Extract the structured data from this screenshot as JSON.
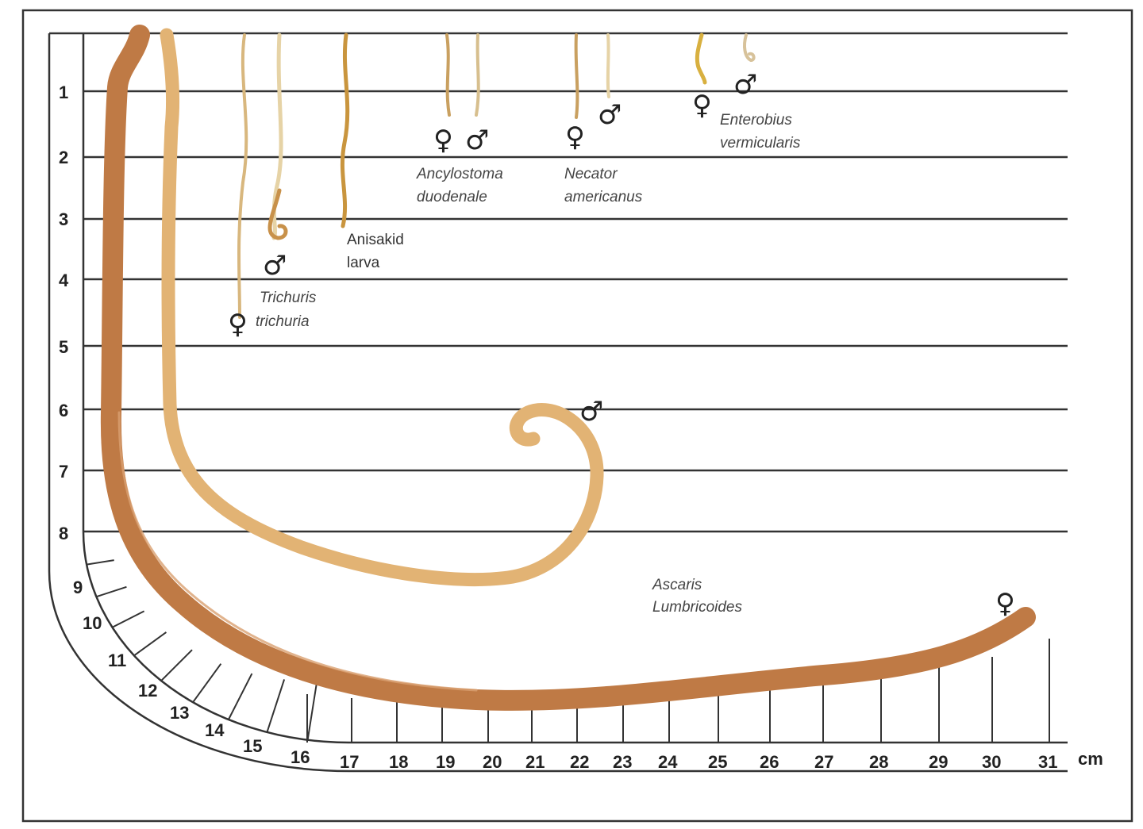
{
  "vertical_scale": [
    "1",
    "2",
    "3",
    "4",
    "5",
    "6",
    "7",
    "8"
  ],
  "curve_scale": [
    "9",
    "10",
    "11",
    "12",
    "13",
    "14",
    "15",
    "16"
  ],
  "horizontal_scale": [
    "17",
    "18",
    "19",
    "20",
    "21",
    "22",
    "23",
    "24",
    "25",
    "26",
    "27",
    "28",
    "29",
    "30",
    "31"
  ],
  "unit": "cm",
  "symbols": {
    "female": "♀",
    "male": "♂"
  },
  "species": {
    "trichuris": {
      "line1": "Trichuris",
      "line2": "trichuria"
    },
    "anisakid": {
      "line1": "Anisakid",
      "line2": "larva"
    },
    "ancylostoma": {
      "line1": "Ancylostoma",
      "line2": "duodenale"
    },
    "necator": {
      "line1": "Necator",
      "line2": "americanus"
    },
    "enterobius": {
      "line1": "Enterobius",
      "line2": "vermicularis"
    },
    "ascaris": {
      "line1": "Ascaris",
      "line2": "Lumbricoides"
    }
  },
  "colors": {
    "ascaris_female": "#bf7a45",
    "ascaris_male": "#e2b374",
    "thin_worm": "#c9a060",
    "pale_worm": "#e6d3a6",
    "line": "#333333"
  }
}
